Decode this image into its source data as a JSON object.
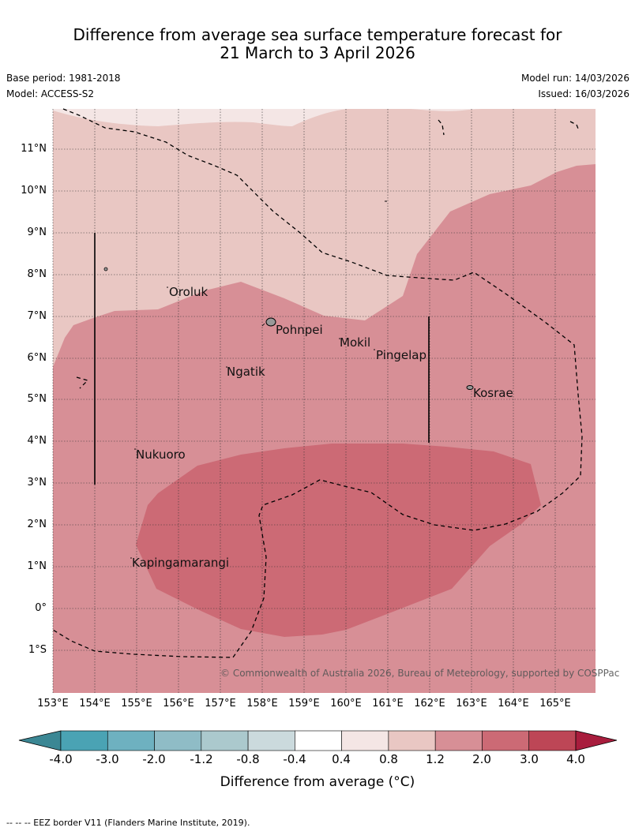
{
  "title": {
    "line1": "Difference from average sea surface temperature forecast for",
    "line2": "21 March to 3 April 2026"
  },
  "meta": {
    "base_period": "Base period: 1981-2018",
    "model": "Model: ACCESS-S2",
    "model_run": "Model run: 14/03/2026",
    "issued": "Issued: 16/03/2026"
  },
  "map": {
    "latitude_labels": [
      "11°N",
      "10°N",
      "9°N",
      "8°N",
      "7°N",
      "6°N",
      "5°N",
      "4°N",
      "3°N",
      "2°N",
      "1°N",
      "0°",
      "1°S"
    ],
    "longitude_labels": [
      "153°E",
      "154°E",
      "155°E",
      "156°E",
      "157°E",
      "158°E",
      "159°E",
      "160°E",
      "161°E",
      "162°E",
      "163°E",
      "164°E",
      "165°E"
    ],
    "islands": [
      "Oroluk",
      "Pohnpei",
      "Mokil",
      "Pingelap",
      "Ngatik",
      "Kosrae",
      "Nukuoro",
      "Kapingamarangi"
    ],
    "copyright": "© Commonwealth of Australia 2026, Bureau of Meteorology, supported by COSPPac"
  },
  "colorbar": {
    "title": "Difference from average (°C)",
    "ticks": [
      "-4.0",
      "-3.0",
      "-2.0",
      "-1.2",
      "-0.8",
      "-0.4",
      "0.4",
      "0.8",
      "1.2",
      "2.0",
      "3.0",
      "4.0"
    ],
    "colors": [
      "#4aa3b4",
      "#6eb1c0",
      "#8fbcc6",
      "#abc9cd",
      "#cbdadd",
      "#ffffff",
      "#f4e6e5",
      "#e9c7c3",
      "#d78f96",
      "#cc6a75",
      "#bd4656"
    ],
    "under_color": "#3b8794",
    "over_color": "#a81d3d"
  },
  "footer": "-- -- -- EEZ border V11 (Flanders Marine Institute, 2019)."
}
